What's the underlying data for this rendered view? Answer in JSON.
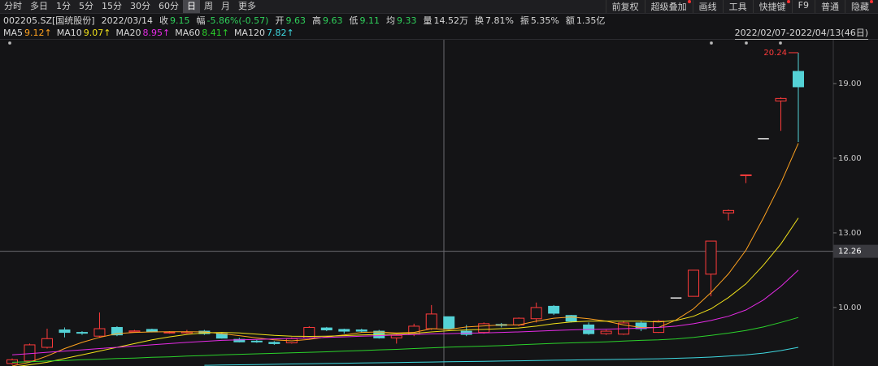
{
  "toolbar": {
    "periods": [
      "分时",
      "多日",
      "1分",
      "5分",
      "15分",
      "30分",
      "60分",
      "日",
      "周",
      "月",
      "更多"
    ],
    "active_period_index": 7,
    "tools": [
      {
        "label": "前复权",
        "badge": false
      },
      {
        "label": "超级叠加",
        "badge": true
      },
      {
        "label": "画线",
        "badge": false
      },
      {
        "label": "工具",
        "badge": false
      },
      {
        "label": "快捷键",
        "badge": true
      },
      {
        "label": "F9",
        "badge": false
      },
      {
        "label": "普通",
        "badge": false
      },
      {
        "label": "隐藏",
        "badge": true
      }
    ]
  },
  "quote": {
    "code": "002205.SZ[国统股份]",
    "date": "2022/03/14",
    "fields": [
      {
        "label": "收",
        "value": 9.15,
        "color": "#2fd15b"
      },
      {
        "label": "幅",
        "value": "-5.86%(-0.57)",
        "color": "#2fd15b"
      },
      {
        "label": "开",
        "value": 9.63,
        "color": "#2fd15b"
      },
      {
        "label": "高",
        "value": 9.63,
        "color": "#2fd15b"
      },
      {
        "label": "低",
        "value": 9.11,
        "color": "#2fd15b"
      },
      {
        "label": "均",
        "value": 9.33,
        "color": "#2fd15b"
      },
      {
        "label": "量",
        "value": "14.52万",
        "color": "#d8d8d8"
      },
      {
        "label": "换",
        "value": "7.81%",
        "color": "#d8d8d8"
      },
      {
        "label": "振",
        "value": "5.35%",
        "color": "#d8d8d8"
      },
      {
        "label": "额",
        "value": "1.35亿",
        "color": "#d8d8d8"
      }
    ]
  },
  "chart_data": {
    "type": "candlestick",
    "range_label": "2022/02/07-2022/04/13(46日)",
    "up_color": "#ff3b3b",
    "down_color": "#54d2d6",
    "flat_color": "#e8e8e8",
    "open": [
      7.75,
      7.85,
      8.4,
      9.1,
      9.0,
      8.85,
      9.2,
      9.02,
      9.12,
      9.0,
      8.98,
      9.05,
      8.95,
      8.72,
      8.65,
      8.6,
      8.58,
      8.77,
      9.18,
      9.12,
      9.1,
      9.05,
      8.78,
      8.92,
      9.15,
      9.63,
      9.05,
      9.0,
      9.32,
      9.3,
      9.55,
      10.05,
      9.68,
      9.3,
      8.95,
      8.93,
      9.38,
      9.0,
      10.4,
      10.45,
      11.34,
      13.8,
      15.3,
      16.8,
      18.3,
      19.49
    ],
    "high": [
      7.95,
      8.55,
      9.15,
      9.2,
      9.05,
      9.8,
      9.25,
      9.1,
      9.15,
      9.05,
      9.1,
      9.1,
      9.0,
      8.78,
      8.7,
      8.65,
      8.8,
      9.25,
      9.22,
      9.15,
      9.15,
      9.1,
      8.92,
      9.35,
      10.1,
      9.63,
      9.3,
      9.4,
      9.38,
      9.6,
      10.2,
      10.1,
      9.7,
      9.4,
      9.1,
      9.45,
      9.45,
      9.5,
      10.4,
      11.5,
      12.67,
      13.94,
      15.33,
      16.8,
      18.45,
      20.24
    ],
    "low": [
      7.7,
      7.8,
      8.35,
      8.8,
      8.9,
      8.8,
      8.85,
      9.0,
      9.0,
      8.95,
      8.95,
      8.9,
      8.75,
      8.6,
      8.58,
      8.5,
      8.55,
      8.75,
      9.05,
      8.95,
      9.0,
      8.75,
      8.55,
      8.85,
      9.1,
      9.11,
      8.85,
      8.95,
      9.2,
      9.25,
      9.4,
      9.7,
      9.4,
      8.9,
      8.9,
      8.9,
      9.05,
      8.98,
      10.4,
      10.45,
      10.45,
      13.5,
      15.0,
      16.8,
      17.1,
      16.65
    ],
    "close": [
      7.9,
      8.5,
      8.75,
      9.0,
      8.98,
      9.15,
      8.9,
      9.06,
      9.02,
      9.01,
      9.02,
      8.95,
      8.77,
      8.62,
      8.62,
      8.55,
      8.75,
      9.2,
      9.1,
      9.05,
      9.05,
      8.78,
      8.88,
      9.25,
      9.74,
      9.15,
      8.92,
      9.35,
      9.28,
      9.57,
      10.0,
      9.77,
      9.45,
      8.95,
      9.05,
      9.38,
      9.15,
      9.45,
      10.4,
      11.5,
      12.67,
      13.9,
      15.33,
      16.8,
      18.4,
      18.87
    ],
    "ma": [
      {
        "name": "MA5",
        "value_label": "9.12↑",
        "color": "#ffa21f",
        "values": [
          7.65,
          7.8,
          8.05,
          8.35,
          8.6,
          8.8,
          8.95,
          9.0,
          9.02,
          9.03,
          9.03,
          9.02,
          8.95,
          8.87,
          8.78,
          8.7,
          8.66,
          8.72,
          8.82,
          8.9,
          9.0,
          9.02,
          8.98,
          9.0,
          9.15,
          9.12,
          9.22,
          9.26,
          9.3,
          9.3,
          9.45,
          9.57,
          9.62,
          9.55,
          9.45,
          9.3,
          9.2,
          9.2,
          9.5,
          9.95,
          10.6,
          11.35,
          12.3,
          13.6,
          15.0,
          16.6
        ]
      },
      {
        "name": "MA10",
        "value_label": "9.07↑",
        "color": "#f2e21a",
        "values": [
          7.6,
          7.7,
          7.8,
          7.95,
          8.1,
          8.25,
          8.4,
          8.55,
          8.7,
          8.82,
          8.92,
          8.98,
          9.0,
          8.98,
          8.93,
          8.88,
          8.85,
          8.84,
          8.85,
          8.87,
          8.9,
          8.92,
          8.94,
          8.96,
          9.02,
          9.07,
          9.1,
          9.12,
          9.15,
          9.18,
          9.25,
          9.35,
          9.42,
          9.45,
          9.45,
          9.45,
          9.45,
          9.42,
          9.48,
          9.65,
          9.95,
          10.4,
          10.95,
          11.7,
          12.55,
          13.6
        ]
      },
      {
        "name": "MA20",
        "value_label": "8.95↑",
        "color": "#e52be5",
        "values": [
          8.1,
          8.15,
          8.2,
          8.25,
          8.3,
          8.35,
          8.4,
          8.45,
          8.5,
          8.55,
          8.6,
          8.64,
          8.68,
          8.7,
          8.72,
          8.74,
          8.76,
          8.78,
          8.8,
          8.82,
          8.85,
          8.87,
          8.9,
          8.92,
          8.94,
          8.95,
          8.97,
          8.98,
          9.0,
          9.02,
          9.05,
          9.08,
          9.1,
          9.12,
          9.13,
          9.15,
          9.17,
          9.2,
          9.25,
          9.35,
          9.48,
          9.65,
          9.9,
          10.3,
          10.85,
          11.5
        ]
      },
      {
        "name": "MA60",
        "value_label": "8.41↑",
        "color": "#2bd12b",
        "values": [
          7.8,
          7.82,
          7.85,
          7.87,
          7.9,
          7.92,
          7.95,
          7.97,
          8.0,
          8.02,
          8.05,
          8.07,
          8.1,
          8.12,
          8.14,
          8.16,
          8.18,
          8.2,
          8.22,
          8.25,
          8.27,
          8.3,
          8.32,
          8.35,
          8.38,
          8.41,
          8.43,
          8.45,
          8.47,
          8.5,
          8.53,
          8.56,
          8.58,
          8.6,
          8.62,
          8.65,
          8.68,
          8.7,
          8.74,
          8.8,
          8.88,
          8.97,
          9.08,
          9.22,
          9.4,
          9.6
        ]
      },
      {
        "name": "MA120",
        "value_label": "7.82↑",
        "color": "#3fd8e0",
        "values": [
          null,
          null,
          null,
          null,
          null,
          null,
          null,
          null,
          null,
          null,
          null,
          7.68,
          7.69,
          7.7,
          7.71,
          7.72,
          7.73,
          7.74,
          7.75,
          7.76,
          7.77,
          7.78,
          7.79,
          7.8,
          7.81,
          7.82,
          7.83,
          7.84,
          7.85,
          7.86,
          7.87,
          7.88,
          7.89,
          7.9,
          7.91,
          7.92,
          7.93,
          7.94,
          7.96,
          7.98,
          8.01,
          8.05,
          8.1,
          8.17,
          8.27,
          8.4
        ]
      }
    ],
    "ylim": [
      7.65,
      20.76
    ],
    "yticks": [
      {
        "value": 10,
        "label": "10.00"
      },
      {
        "value": 13,
        "label": "13.00"
      },
      {
        "value": 16,
        "label": "16.00"
      },
      {
        "value": 19,
        "label": "19.00"
      }
    ],
    "crosshair_price": 12.26
  }
}
